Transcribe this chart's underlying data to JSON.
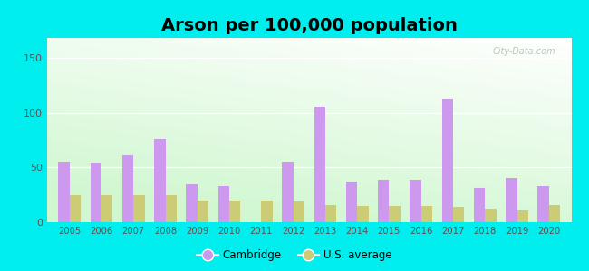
{
  "years": [
    2005,
    2006,
    2007,
    2008,
    2009,
    2010,
    2011,
    2012,
    2013,
    2014,
    2015,
    2016,
    2017,
    2018,
    2019,
    2020
  ],
  "cambridge": [
    55,
    54,
    61,
    76,
    35,
    33,
    0,
    55,
    105,
    37,
    39,
    39,
    112,
    31,
    40,
    33
  ],
  "us_average": [
    25,
    25,
    25,
    25,
    20,
    20,
    20,
    19,
    16,
    15,
    15,
    15,
    14,
    12,
    11,
    16
  ],
  "cambridge_color": "#cc99ee",
  "us_color": "#cccc77",
  "title": "Arson per 100,000 population",
  "title_fontsize": 14,
  "ylabel_ticks": [
    0,
    50,
    100,
    150
  ],
  "ylim": [
    0,
    168
  ],
  "background_outer": "#00eeee",
  "bar_width": 0.35,
  "legend_cambridge": "Cambridge",
  "legend_us": "U.S. average",
  "watermark": "City-Data.com"
}
